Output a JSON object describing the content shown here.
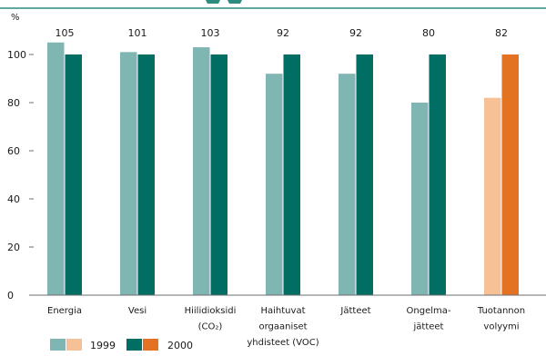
{
  "chart_data": {
    "type": "bar",
    "y_unit_label": "%",
    "ylim": [
      0,
      100
    ],
    "yticks": [
      0,
      20,
      40,
      60,
      80,
      100
    ],
    "grid": false,
    "categories": [
      {
        "lines": [
          "Energia"
        ],
        "label_1999": "105",
        "v1999": 105,
        "v2000": 100,
        "highlight": false
      },
      {
        "lines": [
          "Vesi"
        ],
        "label_1999": "101",
        "v1999": 101,
        "v2000": 100,
        "highlight": false
      },
      {
        "lines": [
          "Hiilidioksidi",
          "(CO₂)"
        ],
        "label_1999": "103",
        "v1999": 103,
        "v2000": 100,
        "highlight": false
      },
      {
        "lines": [
          "Haihtuvat",
          "orgaaniset",
          "yhdisteet (VOC)"
        ],
        "label_1999": "92",
        "v1999": 92,
        "v2000": 100,
        "highlight": false
      },
      {
        "lines": [
          "Jätteet"
        ],
        "label_1999": "92",
        "v1999": 92,
        "v2000": 100,
        "highlight": false
      },
      {
        "lines": [
          "Ongelma-",
          "jätteet"
        ],
        "label_1999": "80",
        "v1999": 80,
        "v2000": 100,
        "highlight": false
      },
      {
        "lines": [
          "Tuotannon",
          "volyymi"
        ],
        "label_1999": "82",
        "v1999": 82,
        "v2000": 100,
        "highlight": true
      }
    ],
    "series": [
      {
        "name": "1999"
      },
      {
        "name": "2000"
      }
    ],
    "legend": {
      "placement": "bottom-left",
      "label_1999": "1999",
      "label_2000": "2000"
    },
    "colors": {
      "c1999": "#7fb5b2",
      "c2000": "#006e63",
      "c1999_highlight": "#f6c197",
      "c2000_highlight": "#e37222",
      "rule": "#2e8b7f",
      "axis": "#6e6e6e",
      "text": "#1a1a1a"
    }
  }
}
